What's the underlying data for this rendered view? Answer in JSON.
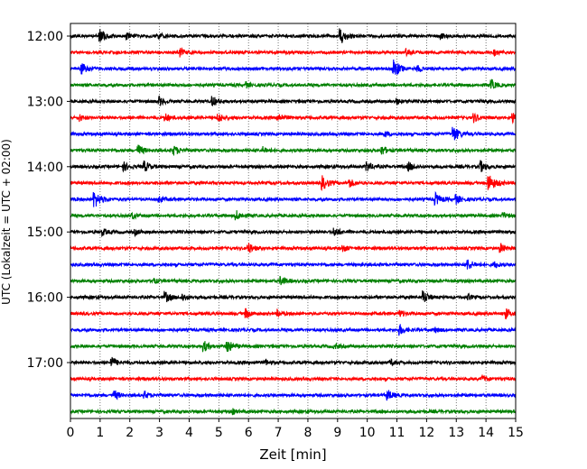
{
  "chart_data": {
    "type": "line",
    "title": "",
    "xlabel": "Zeit  [min]",
    "ylabel": "UTC (Lokalzeit = UTC + 02:00)",
    "xlim": [
      0,
      15
    ],
    "x_ticks": [
      0,
      1,
      2,
      3,
      4,
      5,
      6,
      7,
      8,
      9,
      10,
      11,
      12,
      13,
      14,
      15
    ],
    "y_tick_labels": [
      "12:00",
      "13:00",
      "14:00",
      "15:00",
      "16:00",
      "17:00"
    ],
    "grid": "vertical dotted",
    "trace_interval_minutes": 15,
    "colors": [
      "#000000",
      "#ff0000",
      "#0000ff",
      "#008000"
    ],
    "traces": [
      {
        "start": "12:00",
        "color": "#000000",
        "events": [
          [
            1.0,
            1.6
          ],
          [
            1.9,
            0.8
          ],
          [
            3.0,
            0.6
          ],
          [
            9.1,
            1.8
          ],
          [
            12.5,
            0.6
          ]
        ]
      },
      {
        "start": "12:15",
        "color": "#ff0000",
        "events": [
          [
            3.7,
            0.9
          ],
          [
            11.3,
            0.9
          ],
          [
            14.3,
            0.6
          ]
        ]
      },
      {
        "start": "12:30",
        "color": "#0000ff",
        "events": [
          [
            0.4,
            1.2
          ],
          [
            10.9,
            2.0
          ],
          [
            11.7,
            0.6
          ]
        ]
      },
      {
        "start": "12:45",
        "color": "#008000",
        "events": [
          [
            5.9,
            0.7
          ],
          [
            14.2,
            1.0
          ]
        ]
      },
      {
        "start": "13:00",
        "color": "#000000",
        "events": [
          [
            3.0,
            1.0
          ],
          [
            4.8,
            1.1
          ],
          [
            11.0,
            0.6
          ]
        ]
      },
      {
        "start": "13:15",
        "color": "#ff0000",
        "events": [
          [
            0.3,
            0.8
          ],
          [
            3.2,
            1.0
          ],
          [
            5.0,
            1.0
          ],
          [
            7.0,
            1.1
          ],
          [
            13.6,
            1.0
          ],
          [
            14.9,
            1.0
          ]
        ]
      },
      {
        "start": "13:30",
        "color": "#0000ff",
        "events": [
          [
            10.6,
            0.6
          ],
          [
            12.9,
            1.8
          ]
        ]
      },
      {
        "start": "13:45",
        "color": "#008000",
        "events": [
          [
            2.3,
            1.2
          ],
          [
            3.5,
            1.0
          ],
          [
            6.5,
            0.7
          ],
          [
            10.5,
            1.0
          ]
        ]
      },
      {
        "start": "14:00",
        "color": "#000000",
        "events": [
          [
            1.8,
            1.0
          ],
          [
            2.5,
            1.2
          ],
          [
            10.0,
            1.0
          ],
          [
            11.4,
            1.0
          ],
          [
            13.8,
            1.4
          ]
        ]
      },
      {
        "start": "14:15",
        "color": "#ff0000",
        "events": [
          [
            8.5,
            1.6
          ],
          [
            9.4,
            1.0
          ],
          [
            14.1,
            2.0
          ]
        ]
      },
      {
        "start": "14:30",
        "color": "#0000ff",
        "events": [
          [
            0.8,
            2.0
          ],
          [
            3.0,
            0.7
          ],
          [
            12.3,
            1.4
          ],
          [
            13.0,
            1.0
          ]
        ]
      },
      {
        "start": "14:45",
        "color": "#008000",
        "events": [
          [
            2.1,
            0.6
          ],
          [
            5.6,
            1.0
          ],
          [
            14.6,
            0.6
          ]
        ]
      },
      {
        "start": "15:00",
        "color": "#000000",
        "events": [
          [
            1.1,
            0.8
          ],
          [
            2.2,
            0.6
          ],
          [
            8.9,
            1.0
          ]
        ]
      },
      {
        "start": "15:15",
        "color": "#ff0000",
        "events": [
          [
            6.0,
            1.2
          ],
          [
            9.2,
            0.7
          ],
          [
            14.5,
            1.0
          ]
        ]
      },
      {
        "start": "15:30",
        "color": "#0000ff",
        "events": [
          [
            13.4,
            1.2
          ],
          [
            14.3,
            0.7
          ]
        ]
      },
      {
        "start": "15:45",
        "color": "#008000",
        "events": [
          [
            2.8,
            0.6
          ],
          [
            7.1,
            1.0
          ]
        ]
      },
      {
        "start": "16:00",
        "color": "#000000",
        "events": [
          [
            3.2,
            1.2
          ],
          [
            3.8,
            0.8
          ],
          [
            11.9,
            1.4
          ],
          [
            13.4,
            0.6
          ]
        ]
      },
      {
        "start": "16:15",
        "color": "#ff0000",
        "events": [
          [
            5.9,
            1.2
          ],
          [
            7.0,
            0.7
          ],
          [
            11.1,
            0.8
          ],
          [
            14.7,
            1.0
          ]
        ]
      },
      {
        "start": "16:30",
        "color": "#0000ff",
        "events": [
          [
            11.1,
            1.2
          ],
          [
            12.3,
            0.6
          ]
        ]
      },
      {
        "start": "16:45",
        "color": "#008000",
        "events": [
          [
            4.5,
            1.2
          ],
          [
            5.3,
            1.4
          ],
          [
            8.9,
            0.6
          ]
        ]
      },
      {
        "start": "17:00",
        "color": "#000000",
        "events": [
          [
            1.4,
            1.2
          ],
          [
            6.6,
            0.6
          ],
          [
            10.8,
            0.6
          ]
        ]
      },
      {
        "start": "17:15",
        "color": "#ff0000",
        "events": [
          [
            13.9,
            0.8
          ]
        ]
      },
      {
        "start": "17:30",
        "color": "#0000ff",
        "events": [
          [
            1.5,
            1.0
          ],
          [
            2.5,
            0.8
          ],
          [
            10.7,
            1.1
          ]
        ]
      },
      {
        "start": "17:45",
        "color": "#008000",
        "events": [
          [
            5.5,
            0.5
          ]
        ]
      }
    ]
  }
}
